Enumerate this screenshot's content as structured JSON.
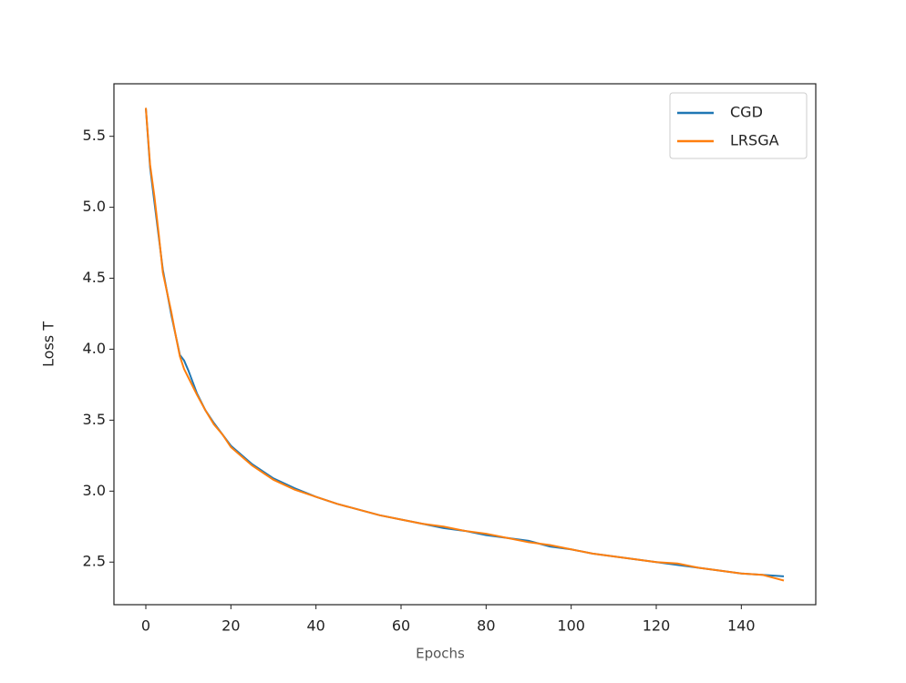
{
  "chart_data": {
    "type": "line",
    "x_label": "Epochs",
    "y_label": "Loss T",
    "x": [
      0,
      1,
      2,
      3,
      4,
      5,
      6,
      7,
      8,
      9,
      10,
      12,
      14,
      16,
      18,
      20,
      25,
      30,
      35,
      40,
      45,
      50,
      55,
      60,
      65,
      70,
      75,
      80,
      85,
      90,
      95,
      100,
      105,
      110,
      115,
      120,
      125,
      130,
      135,
      140,
      145,
      150
    ],
    "series": [
      {
        "name": "CGD",
        "color": "#1f77b4",
        "values": [
          5.7,
          5.28,
          5.04,
          4.8,
          4.56,
          4.4,
          4.24,
          4.1,
          3.96,
          3.92,
          3.85,
          3.69,
          3.57,
          3.48,
          3.4,
          3.32,
          3.19,
          3.09,
          3.02,
          2.96,
          2.91,
          2.87,
          2.83,
          2.8,
          2.77,
          2.74,
          2.72,
          2.69,
          2.67,
          2.65,
          2.61,
          2.59,
          2.56,
          2.54,
          2.52,
          2.5,
          2.48,
          2.46,
          2.44,
          2.42,
          2.41,
          2.4
        ]
      },
      {
        "name": "LRSGA",
        "color": "#ff7f0e",
        "values": [
          5.7,
          5.3,
          5.08,
          4.82,
          4.54,
          4.4,
          4.26,
          4.1,
          3.95,
          3.86,
          3.8,
          3.68,
          3.57,
          3.47,
          3.4,
          3.31,
          3.18,
          3.08,
          3.01,
          2.96,
          2.91,
          2.87,
          2.83,
          2.8,
          2.77,
          2.75,
          2.72,
          2.7,
          2.67,
          2.64,
          2.62,
          2.59,
          2.56,
          2.54,
          2.52,
          2.5,
          2.49,
          2.46,
          2.44,
          2.42,
          2.41,
          2.37
        ]
      }
    ],
    "xlim": [
      -7.5,
      157.5
    ],
    "ylim": [
      2.2,
      5.87
    ],
    "xticks": [
      0,
      20,
      40,
      60,
      80,
      100,
      120,
      140
    ],
    "yticks": [
      2.5,
      {
        "value": 3,
        "label": "3.0"
      },
      3.5,
      {
        "value": 4,
        "label": "4.0"
      },
      4.5,
      {
        "value": 5,
        "label": "5.0"
      },
      5.5
    ],
    "grid": false,
    "legend": "upper right"
  }
}
